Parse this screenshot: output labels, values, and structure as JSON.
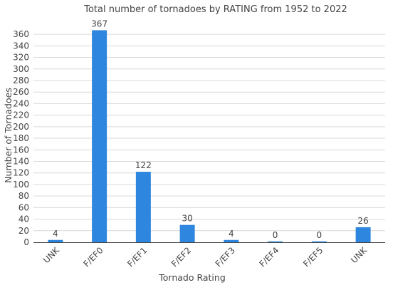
{
  "chart_data": {
    "type": "bar",
    "title": "Total number of tornadoes by RATING from 1952 to 2022",
    "xlabel": "Tornado Rating",
    "ylabel": "Number of Tornadoes",
    "categories": [
      "UNK",
      "F/EF0",
      "F/EF1",
      "F/EF2",
      "F/EF3",
      "F/EF4",
      "F/EF5",
      "UNK"
    ],
    "values": [
      4,
      367,
      122,
      30,
      4,
      0,
      0,
      26
    ],
    "ylim": [
      0,
      370
    ],
    "yticks": [
      0,
      20,
      40,
      60,
      80,
      100,
      120,
      140,
      160,
      180,
      200,
      220,
      240,
      260,
      280,
      300,
      320,
      340,
      360
    ],
    "bar_color": "#2e86de",
    "grid": true,
    "legend": "none"
  }
}
